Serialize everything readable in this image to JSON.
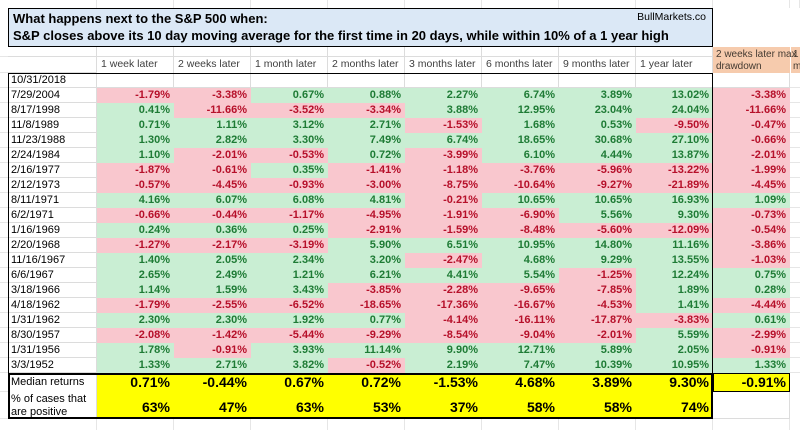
{
  "title": {
    "line1": "What happens next to the S&P 500 when:",
    "line2": "S&P closes above its 10 day moving average for the first time in 20 days, while within 10% of a 1 year high",
    "brand": "BullMarkets.co"
  },
  "columns": [
    "1 week later",
    "2 weeks later",
    "1 month later",
    "2 months later",
    "3 months later",
    "6 months later",
    "9 months later",
    "1 year later"
  ],
  "drawdown_column": {
    "line1": "2 weeks later max",
    "line2": "drawdown"
  },
  "next_column_clip": {
    "line1": "1",
    "line2": "m"
  },
  "empty_row": {
    "date": "10/31/2018"
  },
  "rows": [
    {
      "date": "7/29/2004",
      "values": [
        "-1.79%",
        "-3.38%",
        "0.67%",
        "0.88%",
        "2.27%",
        "6.74%",
        "3.89%",
        "13.02%"
      ],
      "drawdown": "-3.38%"
    },
    {
      "date": "8/17/1998",
      "values": [
        "0.41%",
        "-11.66%",
        "-3.52%",
        "-3.34%",
        "3.88%",
        "12.95%",
        "23.04%",
        "24.04%"
      ],
      "drawdown": "-11.66%"
    },
    {
      "date": "11/8/1989",
      "values": [
        "0.71%",
        "1.11%",
        "3.12%",
        "2.71%",
        "-1.53%",
        "1.68%",
        "0.53%",
        "-9.50%"
      ],
      "drawdown": "-0.47%"
    },
    {
      "date": "11/23/1988",
      "values": [
        "1.30%",
        "2.82%",
        "3.30%",
        "7.49%",
        "6.74%",
        "18.65%",
        "30.68%",
        "27.10%"
      ],
      "drawdown": "-0.66%"
    },
    {
      "date": "2/24/1984",
      "values": [
        "1.10%",
        "-2.01%",
        "-0.53%",
        "0.72%",
        "-3.99%",
        "6.10%",
        "4.44%",
        "13.87%"
      ],
      "drawdown": "-2.01%"
    },
    {
      "date": "2/16/1977",
      "values": [
        "-1.87%",
        "-0.61%",
        "0.35%",
        "-1.41%",
        "-1.18%",
        "-3.76%",
        "-5.96%",
        "-13.22%"
      ],
      "drawdown": "-1.99%"
    },
    {
      "date": "2/12/1973",
      "values": [
        "-0.57%",
        "-4.45%",
        "-0.93%",
        "-3.00%",
        "-8.75%",
        "-10.64%",
        "-9.27%",
        "-21.89%"
      ],
      "drawdown": "-4.45%"
    },
    {
      "date": "8/11/1971",
      "values": [
        "4.16%",
        "6.07%",
        "6.08%",
        "4.81%",
        "-0.21%",
        "10.65%",
        "10.65%",
        "16.93%"
      ],
      "drawdown": "1.09%"
    },
    {
      "date": "6/2/1971",
      "values": [
        "-0.66%",
        "-0.44%",
        "-1.17%",
        "-4.95%",
        "-1.91%",
        "-6.90%",
        "5.56%",
        "9.30%"
      ],
      "drawdown": "-0.73%"
    },
    {
      "date": "1/16/1969",
      "values": [
        "0.24%",
        "0.36%",
        "0.25%",
        "-2.91%",
        "-1.59%",
        "-8.48%",
        "-5.60%",
        "-12.09%"
      ],
      "drawdown": "-0.54%"
    },
    {
      "date": "2/20/1968",
      "values": [
        "-1.27%",
        "-2.17%",
        "-3.19%",
        "5.90%",
        "6.51%",
        "10.95%",
        "14.80%",
        "11.16%"
      ],
      "drawdown": "-3.86%"
    },
    {
      "date": "11/16/1967",
      "values": [
        "1.40%",
        "2.05%",
        "2.34%",
        "3.20%",
        "-2.47%",
        "4.68%",
        "9.29%",
        "13.55%"
      ],
      "drawdown": "-1.03%"
    },
    {
      "date": "6/6/1967",
      "values": [
        "2.65%",
        "2.49%",
        "1.21%",
        "6.21%",
        "4.41%",
        "5.54%",
        "-1.25%",
        "12.24%"
      ],
      "drawdown": "0.75%"
    },
    {
      "date": "3/18/1966",
      "values": [
        "1.14%",
        "1.59%",
        "3.43%",
        "-3.85%",
        "-2.28%",
        "-9.65%",
        "-7.85%",
        "1.89%"
      ],
      "drawdown": "0.28%"
    },
    {
      "date": "4/18/1962",
      "values": [
        "-1.79%",
        "-2.55%",
        "-6.52%",
        "-18.65%",
        "-17.36%",
        "-16.67%",
        "-4.53%",
        "1.41%"
      ],
      "drawdown": "-4.44%"
    },
    {
      "date": "1/31/1962",
      "values": [
        "2.30%",
        "2.30%",
        "1.92%",
        "0.77%",
        "-4.14%",
        "-16.11%",
        "-17.87%",
        "-3.83%"
      ],
      "drawdown": "0.61%"
    },
    {
      "date": "8/30/1957",
      "values": [
        "-2.08%",
        "-1.42%",
        "-5.44%",
        "-9.29%",
        "-8.54%",
        "-9.04%",
        "-2.01%",
        "5.59%"
      ],
      "drawdown": "-2.99%"
    },
    {
      "date": "1/31/1956",
      "values": [
        "1.78%",
        "-0.91%",
        "3.93%",
        "11.14%",
        "9.90%",
        "12.71%",
        "5.89%",
        "2.05%"
      ],
      "drawdown": "-0.91%"
    },
    {
      "date": "3/3/1952",
      "values": [
        "1.33%",
        "2.71%",
        "3.82%",
        "-0.52%",
        "2.19%",
        "7.47%",
        "10.39%",
        "10.95%"
      ],
      "drawdown": "1.33%"
    }
  ],
  "summary": {
    "median_label": "Median returns",
    "median_values": [
      "0.71%",
      "-0.44%",
      "0.67%",
      "0.72%",
      "-1.53%",
      "4.68%",
      "3.89%",
      "9.30%"
    ],
    "median_drawdown": "-0.91%",
    "positive_label_line1": "% of cases that",
    "positive_label_line2": "are positive",
    "positive_values": [
      "63%",
      "47%",
      "63%",
      "53%",
      "37%",
      "58%",
      "58%",
      "74%"
    ]
  },
  "colors": {
    "title_bg": "#dbe8f6",
    "positive_bg": "#c9eed3",
    "positive_text": "#1e7b35",
    "negative_bg": "#f9c7ce",
    "negative_text": "#b6102a",
    "orange_bg": "#f6cbad",
    "yellow": "#ffff00",
    "gridline": "#dcdcdc",
    "header_text": "#3f3f3f"
  }
}
